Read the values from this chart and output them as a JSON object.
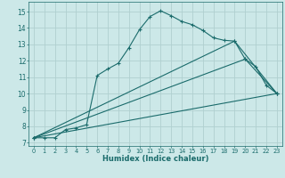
{
  "title": "",
  "xlabel": "Humidex (Indice chaleur)",
  "bg_color": "#cce8e8",
  "grid_color": "#b0d0d0",
  "line_color": "#1a6b6b",
  "xlim": [
    -0.5,
    23.5
  ],
  "ylim": [
    6.8,
    15.6
  ],
  "xticks": [
    0,
    1,
    2,
    3,
    4,
    5,
    6,
    7,
    8,
    9,
    10,
    11,
    12,
    13,
    14,
    15,
    16,
    17,
    18,
    19,
    20,
    21,
    22,
    23
  ],
  "yticks": [
    7,
    8,
    9,
    10,
    11,
    12,
    13,
    14,
    15
  ],
  "series0_x": [
    0,
    1,
    2,
    3,
    4,
    5,
    6,
    7,
    8,
    9,
    10,
    11,
    12,
    13,
    14,
    15,
    16,
    17,
    18,
    19,
    20,
    21,
    22,
    23
  ],
  "series0_y": [
    7.3,
    7.3,
    7.3,
    7.8,
    7.9,
    8.1,
    11.1,
    11.5,
    11.85,
    12.8,
    13.9,
    14.7,
    15.05,
    14.75,
    14.4,
    14.2,
    13.85,
    13.4,
    13.25,
    13.2,
    12.1,
    11.65,
    10.5,
    10.0
  ],
  "series1_x": [
    0,
    23
  ],
  "series1_y": [
    7.3,
    10.0
  ],
  "series2_x": [
    0,
    19,
    23
  ],
  "series2_y": [
    7.3,
    13.2,
    10.0
  ],
  "series3_x": [
    0,
    20,
    23
  ],
  "series3_y": [
    7.3,
    12.1,
    10.0
  ]
}
